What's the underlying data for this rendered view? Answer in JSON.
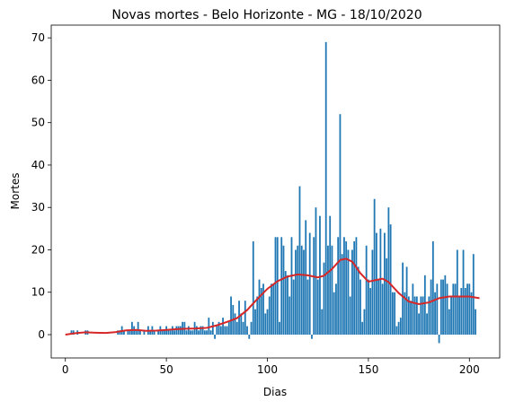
{
  "chart_data": {
    "type": "bar",
    "title": "Novas mortes - Belo Horizonte - MG - 18/10/2020",
    "xlabel": "Dias",
    "ylabel": "Mortes",
    "xlim": [
      -7,
      215
    ],
    "ylim": [
      -5.5,
      73
    ],
    "xticks": [
      0,
      50,
      100,
      150,
      200
    ],
    "yticks": [
      0,
      10,
      20,
      30,
      40,
      50,
      60,
      70
    ],
    "grid": false,
    "legend": "none",
    "colors": {
      "bars": "#1f77b4",
      "trend": "#d62728",
      "axes": "#000000"
    },
    "x_start": 0,
    "values": [
      0,
      0,
      0,
      1,
      1,
      0,
      1,
      0,
      0,
      0,
      1,
      1,
      0,
      0,
      0,
      0,
      0,
      0,
      0,
      0,
      0,
      0,
      0,
      0,
      0,
      0,
      1,
      1,
      2,
      1,
      0,
      1,
      1,
      3,
      2,
      1,
      3,
      1,
      0,
      1,
      0,
      2,
      1,
      2,
      1,
      0,
      1,
      2,
      1,
      1,
      2,
      1,
      1,
      2,
      1,
      2,
      2,
      2,
      3,
      3,
      1,
      2,
      1,
      1,
      3,
      2,
      1,
      2,
      2,
      1,
      1,
      4,
      1,
      3,
      -1,
      2,
      3,
      2,
      4,
      2,
      2,
      3,
      9,
      7,
      5,
      3,
      8,
      5,
      3,
      8,
      2,
      -1,
      3,
      22,
      6,
      9,
      13,
      11,
      12,
      5,
      6,
      9,
      12,
      12,
      23,
      23,
      3,
      23,
      21,
      15,
      14,
      9,
      23,
      13,
      20,
      21,
      35,
      21,
      20,
      27,
      13,
      24,
      -1,
      23,
      30,
      13,
      28,
      6,
      17,
      69,
      21,
      28,
      21,
      10,
      12,
      23,
      52,
      19,
      23,
      22,
      20,
      9,
      20,
      22,
      23,
      16,
      13,
      3,
      6,
      21,
      13,
      11,
      20,
      32,
      24,
      13,
      25,
      12,
      24,
      18,
      30,
      26,
      10,
      10,
      2,
      3,
      4,
      17,
      10,
      16,
      9,
      8,
      12,
      9,
      9,
      5,
      9,
      9,
      14,
      5,
      9,
      13,
      22,
      10,
      12,
      -2,
      13,
      13,
      14,
      12,
      6,
      9,
      12,
      12,
      20,
      9,
      11,
      20,
      11,
      12,
      12,
      10,
      19,
      6
    ],
    "trend_name": "",
    "trend": [
      [
        0,
        0
      ],
      [
        5,
        0.35
      ],
      [
        10,
        0.55
      ],
      [
        15,
        0.45
      ],
      [
        20,
        0.4
      ],
      [
        25,
        0.6
      ],
      [
        30,
        1.0
      ],
      [
        35,
        1.1
      ],
      [
        40,
        0.9
      ],
      [
        45,
        0.95
      ],
      [
        50,
        1.1
      ],
      [
        55,
        1.3
      ],
      [
        60,
        1.4
      ],
      [
        65,
        1.45
      ],
      [
        70,
        1.6
      ],
      [
        75,
        2.2
      ],
      [
        80,
        3.0
      ],
      [
        85,
        3.9
      ],
      [
        90,
        5.8
      ],
      [
        95,
        8.4
      ],
      [
        100,
        10.8
      ],
      [
        105,
        12.6
      ],
      [
        110,
        13.7
      ],
      [
        115,
        14.2
      ],
      [
        120,
        14.0
      ],
      [
        125,
        13.5
      ],
      [
        128,
        13.9
      ],
      [
        132,
        15.5
      ],
      [
        136,
        17.6
      ],
      [
        139,
        17.9
      ],
      [
        142,
        17.2
      ],
      [
        146,
        14.5
      ],
      [
        150,
        12.5
      ],
      [
        153,
        12.8
      ],
      [
        157,
        13.2
      ],
      [
        160,
        12.4
      ],
      [
        165,
        9.8
      ],
      [
        170,
        7.8
      ],
      [
        175,
        7.2
      ],
      [
        180,
        7.6
      ],
      [
        185,
        8.6
      ],
      [
        190,
        9.0
      ],
      [
        195,
        9.0
      ],
      [
        200,
        9.0
      ],
      [
        205,
        8.6
      ]
    ]
  }
}
